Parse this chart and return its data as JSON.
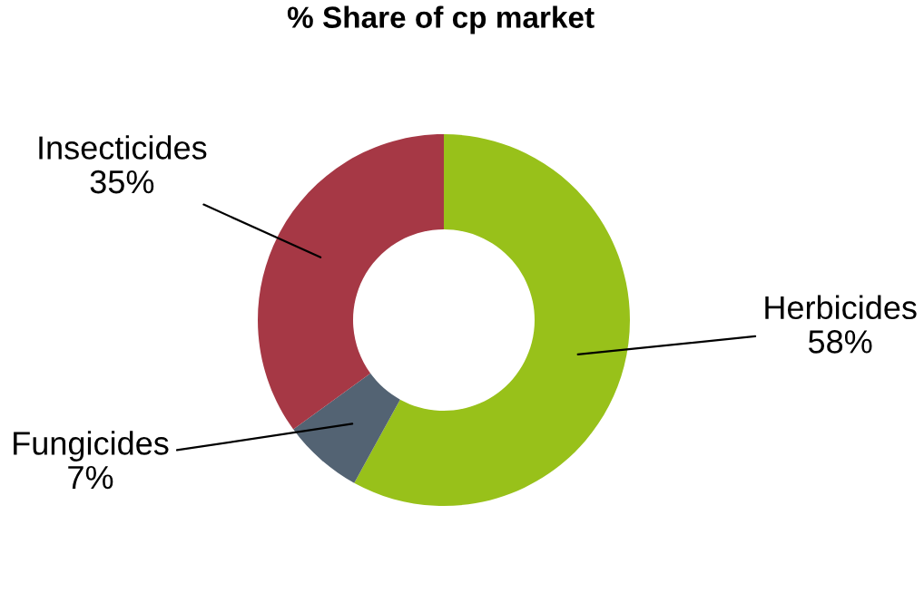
{
  "chart_data": {
    "type": "donut",
    "title": "% Share of cp market",
    "categories": [
      "Herbicides",
      "Fungicides",
      "Insecticides"
    ],
    "values": [
      58,
      7,
      35
    ],
    "colors": [
      "#98c11a",
      "#536373",
      "#a63845"
    ],
    "value_labels": [
      "58%",
      "7%",
      "35%"
    ]
  }
}
